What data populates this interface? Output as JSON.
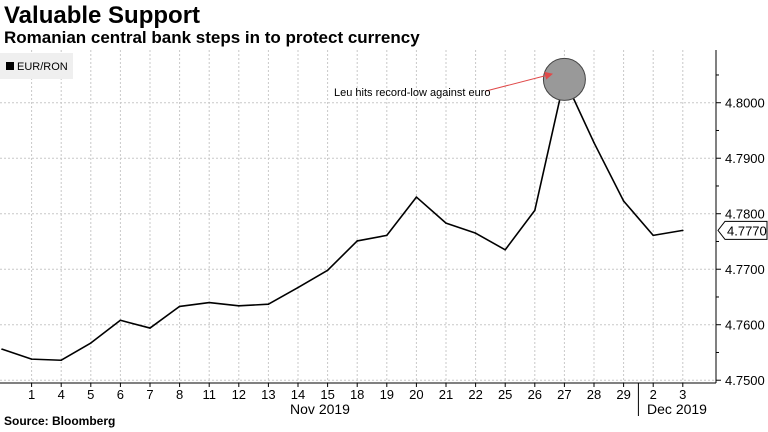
{
  "header": {
    "title": "Valuable Support",
    "subtitle": "Romanian central bank steps in to protect currency"
  },
  "footer": {
    "source": "Source: Bloomberg"
  },
  "chart_data": {
    "type": "line",
    "series": [
      {
        "name": "EUR/RON",
        "x": [
          "",
          "1",
          "4",
          "5",
          "6",
          "7",
          "8",
          "11",
          "12",
          "13",
          "14",
          "15",
          "18",
          "19",
          "20",
          "21",
          "22",
          "25",
          "26",
          "27",
          "28",
          "29",
          "2",
          "3"
        ],
        "values": [
          4.7556,
          4.7538,
          4.7536,
          4.7567,
          4.7608,
          4.7594,
          4.7633,
          4.764,
          4.7634,
          4.7637,
          4.7667,
          4.7698,
          4.7751,
          4.7761,
          4.783,
          4.7783,
          4.7765,
          4.7735,
          4.7806,
          4.8043,
          4.7928,
          4.7823,
          4.7761,
          4.777
        ]
      }
    ],
    "x_tick_labels": [
      "1",
      "4",
      "5",
      "6",
      "7",
      "8",
      "11",
      "12",
      "13",
      "14",
      "15",
      "18",
      "19",
      "20",
      "21",
      "22",
      "25",
      "26",
      "27",
      "28",
      "29",
      "2",
      "3"
    ],
    "month_labels": [
      "Nov 2019",
      "Dec 2019"
    ],
    "y_ticks": [
      4.75,
      4.76,
      4.77,
      4.78,
      4.79,
      4.8
    ],
    "y_tick_labels": [
      "4.7500",
      "4.7600",
      "4.7700",
      "4.7800",
      "4.7900",
      "4.8000"
    ],
    "ylim": [
      4.7495,
      4.8095
    ],
    "last_value_label": "4.7770",
    "legend": {
      "label": "EUR/RON",
      "position": "top-left"
    },
    "annotation": {
      "text": "Leu hits record-low against euro",
      "target_index": 19
    },
    "grid": true,
    "colors": {
      "line": "#000000",
      "grid": "#c8c8c8",
      "arrow": "#e04a4a",
      "circle_fill": "#999999"
    },
    "xlabel": "",
    "ylabel": ""
  }
}
